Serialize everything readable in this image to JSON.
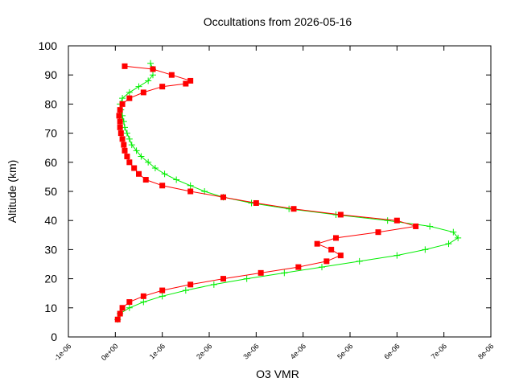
{
  "chart_data": {
    "type": "scatter",
    "title": "Occultations from 2026-05-16",
    "xlabel": "O3 VMR",
    "ylabel": "Altitude (km)",
    "xlim": [
      -1e-06,
      8e-06
    ],
    "ylim": [
      0,
      100
    ],
    "x_ticks": [
      {
        "value": -1e-06,
        "label": "-1e-06"
      },
      {
        "value": 0,
        "label": "0e+00"
      },
      {
        "value": 1e-06,
        "label": "1e-06"
      },
      {
        "value": 2e-06,
        "label": "2e-06"
      },
      {
        "value": 3e-06,
        "label": "3e-06"
      },
      {
        "value": 4e-06,
        "label": "4e-06"
      },
      {
        "value": 5e-06,
        "label": "5e-06"
      },
      {
        "value": 6e-06,
        "label": "6e-06"
      },
      {
        "value": 7e-06,
        "label": "7e-06"
      },
      {
        "value": 8e-06,
        "label": "8e-06"
      }
    ],
    "y_ticks": [
      {
        "value": 0,
        "label": "0"
      },
      {
        "value": 10,
        "label": "10"
      },
      {
        "value": 20,
        "label": "20"
      },
      {
        "value": 30,
        "label": "30"
      },
      {
        "value": 40,
        "label": "40"
      },
      {
        "value": 50,
        "label": "50"
      },
      {
        "value": 60,
        "label": "60"
      },
      {
        "value": 70,
        "label": "70"
      },
      {
        "value": 80,
        "label": "80"
      },
      {
        "value": 90,
        "label": "90"
      },
      {
        "value": 100,
        "label": "100"
      }
    ],
    "grid": false,
    "legend": "none",
    "series": [
      {
        "color": "#00ee00",
        "marker": "plus",
        "points": [
          [
            5e-08,
            6
          ],
          [
            1e-07,
            8
          ],
          [
            3e-07,
            10
          ],
          [
            6e-07,
            12
          ],
          [
            1e-06,
            14
          ],
          [
            1.5e-06,
            16
          ],
          [
            2.1e-06,
            18
          ],
          [
            2.8e-06,
            20
          ],
          [
            3.6e-06,
            22
          ],
          [
            4.4e-06,
            24
          ],
          [
            5.2e-06,
            26
          ],
          [
            6e-06,
            28
          ],
          [
            6.6e-06,
            30
          ],
          [
            7.1e-06,
            32
          ],
          [
            7.3e-06,
            34
          ],
          [
            7.2e-06,
            36
          ],
          [
            6.7e-06,
            38
          ],
          [
            5.8e-06,
            40
          ],
          [
            4.7e-06,
            42
          ],
          [
            3.7e-06,
            44
          ],
          [
            2.9e-06,
            46
          ],
          [
            2.3e-06,
            48
          ],
          [
            1.9e-06,
            50
          ],
          [
            1.6e-06,
            52
          ],
          [
            1.3e-06,
            54
          ],
          [
            1.05e-06,
            56
          ],
          [
            8.5e-07,
            58
          ],
          [
            7e-07,
            60
          ],
          [
            5.5e-07,
            62
          ],
          [
            4.5e-07,
            64
          ],
          [
            3.5e-07,
            66
          ],
          [
            3e-07,
            68
          ],
          [
            2.5e-07,
            70
          ],
          [
            2e-07,
            72
          ],
          [
            1.8e-07,
            74
          ],
          [
            1.5e-07,
            76
          ],
          [
            1.2e-07,
            78
          ],
          [
            1e-07,
            80
          ],
          [
            1.5e-07,
            82
          ],
          [
            3e-07,
            84
          ],
          [
            5e-07,
            86
          ],
          [
            7e-07,
            88
          ],
          [
            8e-07,
            90
          ],
          [
            8e-07,
            92
          ],
          [
            7.5e-07,
            94
          ]
        ]
      },
      {
        "color": "#ff0000",
        "marker": "square",
        "points": [
          [
            5e-08,
            6
          ],
          [
            1e-07,
            8
          ],
          [
            1.5e-07,
            10
          ],
          [
            3e-07,
            12
          ],
          [
            6e-07,
            14
          ],
          [
            1e-06,
            16
          ],
          [
            1.6e-06,
            18
          ],
          [
            2.3e-06,
            20
          ],
          [
            3.1e-06,
            22
          ],
          [
            3.9e-06,
            24
          ],
          [
            4.5e-06,
            26
          ],
          [
            4.8e-06,
            28
          ],
          [
            4.6e-06,
            30
          ],
          [
            4.3e-06,
            32
          ],
          [
            4.7e-06,
            34
          ],
          [
            5.6e-06,
            36
          ],
          [
            6.4e-06,
            38
          ],
          [
            6e-06,
            40
          ],
          [
            4.8e-06,
            42
          ],
          [
            3.8e-06,
            44
          ],
          [
            3e-06,
            46
          ],
          [
            2.3e-06,
            48
          ],
          [
            1.6e-06,
            50
          ],
          [
            1e-06,
            52
          ],
          [
            6.5e-07,
            54
          ],
          [
            5e-07,
            56
          ],
          [
            4e-07,
            58
          ],
          [
            3e-07,
            60
          ],
          [
            2.5e-07,
            62
          ],
          [
            2e-07,
            64
          ],
          [
            1.8e-07,
            66
          ],
          [
            1.5e-07,
            68
          ],
          [
            1.2e-07,
            70
          ],
          [
            1e-07,
            72
          ],
          [
            1e-07,
            74
          ],
          [
            8e-08,
            76
          ],
          [
            1e-07,
            78
          ],
          [
            1.5e-07,
            80
          ],
          [
            3e-07,
            82
          ],
          [
            6e-07,
            84
          ],
          [
            1e-06,
            86
          ],
          [
            1.5e-06,
            87
          ],
          [
            1.6e-06,
            88
          ],
          [
            1.2e-06,
            90
          ],
          [
            8e-07,
            92
          ],
          [
            2e-07,
            93
          ]
        ]
      }
    ]
  }
}
